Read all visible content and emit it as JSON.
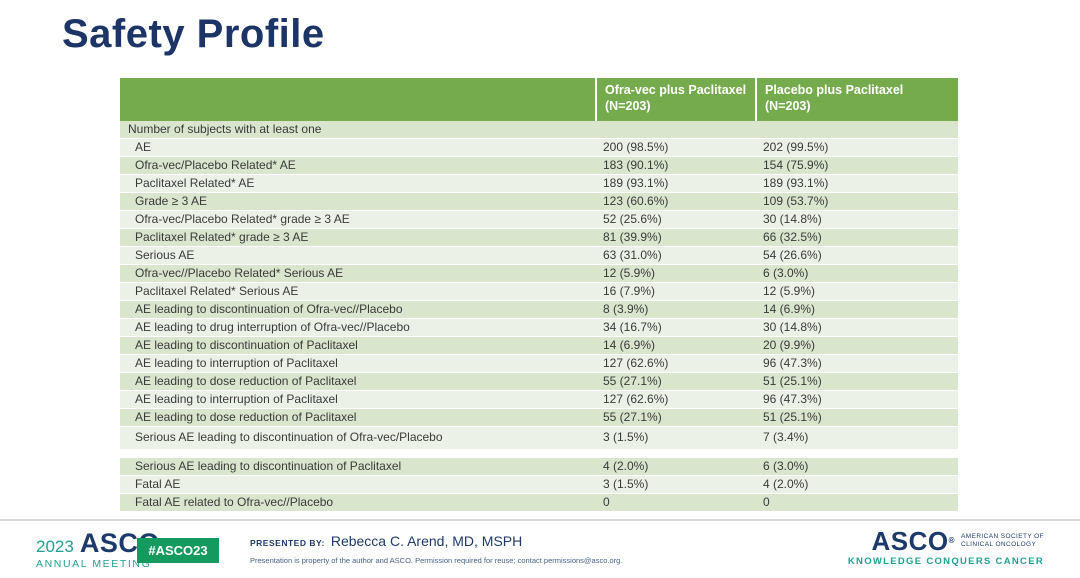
{
  "slide": {
    "title": "Safety Profile"
  },
  "table": {
    "header": {
      "col1": {
        "title": "Ofra-vec plus Paclitaxel",
        "n": "(N=203)"
      },
      "col2": {
        "title": "Placebo plus Paclitaxel",
        "n": "(N=203)"
      }
    },
    "rows": [
      {
        "label": "Number of subjects with at least one",
        "ofra": "",
        "placebo": "",
        "indent": false
      },
      {
        "label": "AE",
        "ofra": "200 (98.5%)",
        "placebo": "202 (99.5%)",
        "indent": true
      },
      {
        "label": "Ofra-vec/Placebo Related* AE",
        "ofra": "183 (90.1%)",
        "placebo": "154 (75.9%)",
        "indent": true
      },
      {
        "label": "Paclitaxel Related* AE",
        "ofra": "189 (93.1%)",
        "placebo": "189 (93.1%)",
        "indent": true
      },
      {
        "label": "Grade ≥ 3 AE",
        "ofra": "123 (60.6%)",
        "placebo": "109 (53.7%)",
        "indent": true
      },
      {
        "label": "Ofra-vec/Placebo Related* grade ≥ 3 AE",
        "ofra": "52 (25.6%)",
        "placebo": "30 (14.8%)",
        "indent": true
      },
      {
        "label": "Paclitaxel Related* grade ≥ 3 AE",
        "ofra": "81 (39.9%)",
        "placebo": "66 (32.5%)",
        "indent": true
      },
      {
        "label": "Serious AE",
        "ofra": "63 (31.0%)",
        "placebo": "54 (26.6%)",
        "indent": true
      },
      {
        "label": "Ofra-vec//Placebo Related* Serious AE",
        "ofra": "12 (5.9%)",
        "placebo": "6 (3.0%)",
        "indent": true
      },
      {
        "label": "Paclitaxel Related* Serious AE",
        "ofra": "16 (7.9%)",
        "placebo": "12 (5.9%)",
        "indent": true
      },
      {
        "label": "AE leading to discontinuation of Ofra-vec//Placebo",
        "ofra": "8 (3.9%)",
        "placebo": "14 (6.9%)",
        "indent": true
      },
      {
        "label": "AE leading to drug interruption of Ofra-vec//Placebo",
        "ofra": "34 (16.7%)",
        "placebo": "30 (14.8%)",
        "indent": true
      },
      {
        "label": "AE leading to discontinuation of Paclitaxel",
        "ofra": "14 (6.9%)",
        "placebo": "20 (9.9%)",
        "indent": true
      },
      {
        "label": "AE leading to interruption of Paclitaxel",
        "ofra": "127 (62.6%)",
        "placebo": "96 (47.3%)",
        "indent": true
      },
      {
        "label": "AE leading to dose reduction of Paclitaxel",
        "ofra": "55 (27.1%)",
        "placebo": "51 (25.1%)",
        "indent": true
      },
      {
        "label": "AE leading to interruption of Paclitaxel",
        "ofra": "127 (62.6%)",
        "placebo": "96 (47.3%)",
        "indent": true
      },
      {
        "label": "AE leading to dose reduction of Paclitaxel",
        "ofra": "55 (27.1%)",
        "placebo": "51 (25.1%)",
        "indent": true
      },
      {
        "label": "Serious AE leading to discontinuation of Ofra-vec/Placebo",
        "ofra": "3 (1.5%)",
        "placebo": "7 (3.4%)",
        "indent": true,
        "tall": true
      },
      {
        "gap": true
      },
      {
        "label": "Serious AE leading to discontinuation of Paclitaxel",
        "ofra": "4 (2.0%)",
        "placebo": "6 (3.0%)",
        "indent": true
      },
      {
        "label": "Fatal AE",
        "ofra": "3 (1.5%)",
        "placebo": "4 (2.0%)",
        "indent": true
      },
      {
        "label": "Fatal AE related to Ofra-vec//Placebo",
        "ofra": "0",
        "placebo": "0",
        "indent": true
      }
    ]
  },
  "footer": {
    "meeting_year": "2023",
    "meeting_logo_text": "ASCO",
    "reg_mark": "®",
    "meeting_logo_sub": "ANNUAL MEETING",
    "hashtag": "#ASCO23",
    "presented_by_label": "PRESENTED BY:",
    "presenter": "Rebecca C. Arend, MD, MSPH",
    "disclaimer": "Presentation is property of the author and ASCO. Permission required for reuse; contact permissions@asco.org.",
    "asco_logo_text": "ASCO",
    "asco_society_line1": "AMERICAN SOCIETY OF",
    "asco_society_line2": "CLINICAL ONCOLOGY",
    "asco_tagline": "KNOWLEDGE CONQUERS CANCER"
  },
  "colors": {
    "title_navy": "#1d3467",
    "header_green": "#76ab4d",
    "row_stripe_dark": "#d9e5cd",
    "row_stripe_light": "#ecf1e7",
    "badge_green": "#149a5e",
    "logo_teal": "#21a093",
    "logo_navy": "#1c3b6c"
  }
}
